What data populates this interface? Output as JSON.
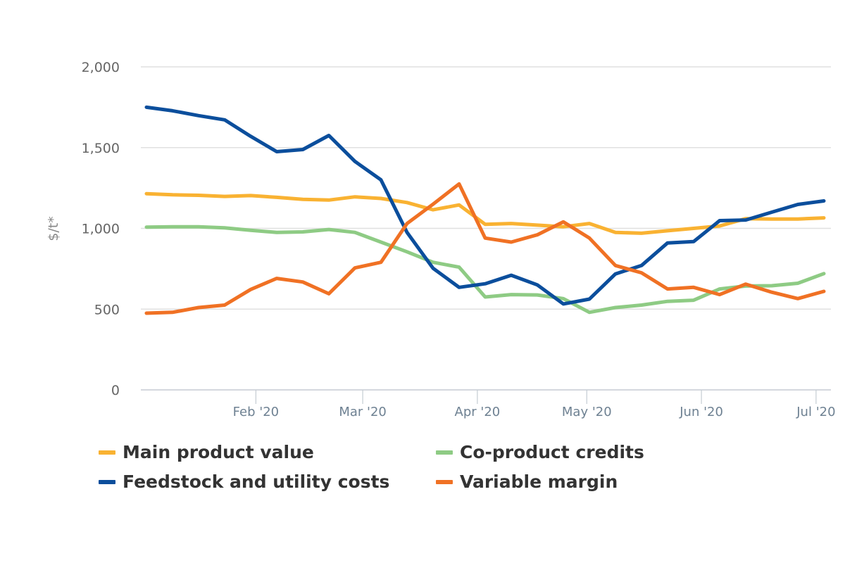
{
  "chart_data": {
    "type": "line",
    "title": "",
    "xlabel": "",
    "ylabel": "$/t*",
    "ylim": [
      0,
      2000
    ],
    "yticks": [
      0,
      500,
      1000,
      1500,
      2000
    ],
    "ytick_labels": [
      "0",
      "500",
      "1,000",
      "1,500",
      "2,000"
    ],
    "grid": true,
    "legend_position": "bottom",
    "x_ticks": [
      {
        "label": "Feb '20",
        "index": 4.2
      },
      {
        "label": "Mar '20",
        "index": 8.3
      },
      {
        "label": "Apr '20",
        "index": 12.7
      },
      {
        "label": "May '20",
        "index": 16.9
      },
      {
        "label": "Jun '20",
        "index": 21.3
      },
      {
        "label": "Jul '20",
        "index": 25.7
      }
    ],
    "point_count": 27,
    "series": [
      {
        "name": "Main product value",
        "color": "#f9b232",
        "values": [
          1215,
          1208,
          1205,
          1198,
          1203,
          1192,
          1180,
          1175,
          1195,
          1185,
          1160,
          1115,
          1145,
          1025,
          1030,
          1020,
          1010,
          1030,
          975,
          970,
          985,
          1000,
          1015,
          1060,
          1058,
          1058,
          1065
        ]
      },
      {
        "name": "Co-product credits",
        "color": "#8ecb84",
        "values": [
          1008,
          1010,
          1010,
          1003,
          988,
          975,
          978,
          993,
          975,
          915,
          855,
          790,
          760,
          575,
          590,
          588,
          565,
          480,
          510,
          525,
          548,
          555,
          625,
          643,
          645,
          660,
          720
        ]
      },
      {
        "name": "Feedstock and utility costs",
        "color": "#0b4e9c",
        "values": [
          1750,
          1728,
          1698,
          1672,
          1570,
          1475,
          1488,
          1575,
          1415,
          1300,
          975,
          753,
          635,
          657,
          710,
          650,
          532,
          562,
          718,
          770,
          910,
          918,
          1048,
          1052,
          1100,
          1148,
          1170
        ]
      },
      {
        "name": "Variable margin",
        "color": "#f07124",
        "values": [
          475,
          480,
          510,
          525,
          622,
          690,
          668,
          595,
          755,
          790,
          1030,
          1150,
          1275,
          940,
          915,
          960,
          1040,
          940,
          770,
          725,
          625,
          635,
          590,
          655,
          605,
          565,
          610
        ]
      }
    ]
  },
  "legend": {
    "items": [
      {
        "label": "Main product value",
        "color": "#f9b232"
      },
      {
        "label": "Co-product credits",
        "color": "#8ecb84"
      },
      {
        "label": "Feedstock and utility costs",
        "color": "#0b4e9c"
      },
      {
        "label": "Variable margin",
        "color": "#f07124"
      }
    ]
  }
}
